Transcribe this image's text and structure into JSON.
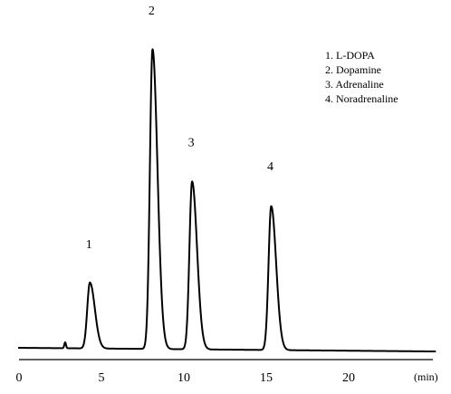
{
  "chart_data": {
    "type": "line",
    "xlabel": "(min)",
    "ylabel": "",
    "xlim": [
      0,
      25
    ],
    "x_ticks": [
      0,
      5,
      10,
      15,
      20
    ],
    "x_tick_labels": [
      "0",
      "5",
      "10",
      "15",
      "20"
    ],
    "grid": false,
    "legend_position": "top-right",
    "legend": [
      "1. L-DOPA",
      "2. Dopamine",
      "3. Adrenaline",
      "4. Noradrenaline"
    ],
    "baseline": 0,
    "minor_peaks": [
      {
        "time": 2.8,
        "height": 0.02
      }
    ],
    "peaks": [
      {
        "label": "1",
        "name": "L-DOPA",
        "time": 4.3,
        "height": 0.22
      },
      {
        "label": "2",
        "name": "Dopamine",
        "time": 8.1,
        "height": 1.0
      },
      {
        "label": "3",
        "name": "Adrenaline",
        "time": 10.5,
        "height": 0.56
      },
      {
        "label": "4",
        "name": "Noradrenaline",
        "time": 15.3,
        "height": 0.48
      }
    ],
    "colors": {
      "trace": "#000000",
      "axis": "#000000"
    }
  }
}
